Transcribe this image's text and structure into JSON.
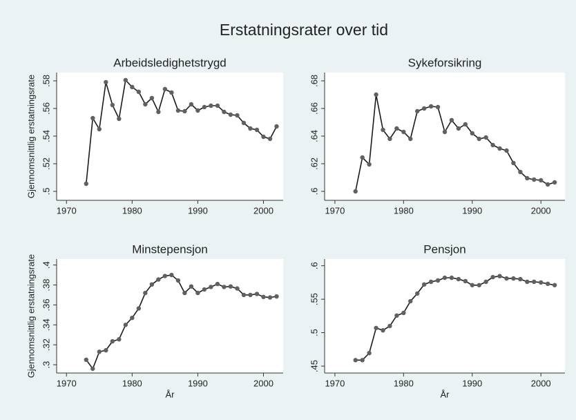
{
  "title": "Erstatningsrater over tid",
  "chart_data": [
    {
      "type": "line",
      "title": "Arbeidsledighetstrygd",
      "ylabel": "Gjennomsnittlig erstatningsrate",
      "color": "#1a1a1a",
      "x": [
        1973,
        1974,
        1975,
        1976,
        1977,
        1978,
        1979,
        1980,
        1981,
        1982,
        1983,
        1984,
        1985,
        1986,
        1987,
        1988,
        1989,
        1990,
        1991,
        1992,
        1993,
        1994,
        1995,
        1996,
        1997,
        1998,
        1999,
        2000,
        2001,
        2002
      ],
      "values": [
        0.5055,
        0.553,
        0.545,
        0.579,
        0.5625,
        0.5525,
        0.5805,
        0.5755,
        0.572,
        0.563,
        0.5675,
        0.5575,
        0.574,
        0.5715,
        0.5585,
        0.558,
        0.563,
        0.5585,
        0.561,
        0.562,
        0.562,
        0.5575,
        0.5555,
        0.555,
        0.5495,
        0.5455,
        0.5445,
        0.5395,
        0.538,
        0.547
      ],
      "xlim": [
        1968.5,
        2003
      ],
      "xticks": [
        1970,
        1980,
        1990,
        2000
      ],
      "ylim": [
        0.4935,
        0.586
      ],
      "yticks": [
        {
          "value": 0.5,
          "label": ".5"
        },
        {
          "value": 0.52,
          "label": ".52"
        },
        {
          "value": 0.54,
          "label": ".54"
        },
        {
          "value": 0.56,
          "label": ".56"
        },
        {
          "value": 0.58,
          "label": ".58"
        }
      ]
    },
    {
      "type": "line",
      "title": "Sykeforsikring",
      "color": "#1a1a1a",
      "x": [
        1973,
        1974,
        1975,
        1976,
        1977,
        1978,
        1979,
        1980,
        1981,
        1982,
        1983,
        1984,
        1985,
        1986,
        1987,
        1988,
        1989,
        1990,
        1991,
        1992,
        1993,
        1994,
        1995,
        1996,
        1997,
        1998,
        1999,
        2000,
        2001,
        2002
      ],
      "values": [
        0.6,
        0.6245,
        0.6195,
        0.67,
        0.6445,
        0.638,
        0.6455,
        0.643,
        0.638,
        0.658,
        0.66,
        0.6615,
        0.661,
        0.643,
        0.6515,
        0.6455,
        0.6485,
        0.642,
        0.638,
        0.639,
        0.6335,
        0.631,
        0.6295,
        0.6205,
        0.614,
        0.6095,
        0.6085,
        0.608,
        0.605,
        0.6065
      ],
      "xlim": [
        1968.5,
        2003.5
      ],
      "xticks": [
        1970,
        1980,
        1990,
        2000
      ],
      "ylim": [
        0.5935,
        0.686
      ],
      "yticks": [
        {
          "value": 0.6,
          "label": ".6"
        },
        {
          "value": 0.62,
          "label": ".62"
        },
        {
          "value": 0.64,
          "label": ".64"
        },
        {
          "value": 0.66,
          "label": ".66"
        },
        {
          "value": 0.68,
          "label": ".68"
        }
      ]
    },
    {
      "type": "line",
      "title": "Minstepensjon",
      "ylabel": "Gjennomsnittlig erstatningsrate",
      "xlabel": "År",
      "color": "#1a1a1a",
      "x": [
        1973,
        1974,
        1975,
        1976,
        1977,
        1978,
        1979,
        1980,
        1981,
        1982,
        1983,
        1984,
        1985,
        1986,
        1987,
        1988,
        1989,
        1990,
        1991,
        1992,
        1993,
        1994,
        1995,
        1996,
        1997,
        1998,
        1999,
        2000,
        2001,
        2002
      ],
      "values": [
        0.305,
        0.296,
        0.313,
        0.3145,
        0.3235,
        0.3255,
        0.34,
        0.347,
        0.3565,
        0.372,
        0.3805,
        0.3855,
        0.389,
        0.39,
        0.3845,
        0.372,
        0.3785,
        0.372,
        0.3755,
        0.378,
        0.381,
        0.378,
        0.3785,
        0.3765,
        0.37,
        0.37,
        0.371,
        0.368,
        0.3675,
        0.3685
      ],
      "xlim": [
        1968.5,
        2003
      ],
      "xticks": [
        1970,
        1980,
        1990,
        2000
      ],
      "ylim": [
        0.2917,
        0.406
      ],
      "yticks": [
        {
          "value": 0.3,
          "label": ".3"
        },
        {
          "value": 0.32,
          "label": ".32"
        },
        {
          "value": 0.34,
          "label": ".34"
        },
        {
          "value": 0.36,
          "label": ".36"
        },
        {
          "value": 0.38,
          "label": ".38"
        },
        {
          "value": 0.4,
          "label": ".4"
        }
      ]
    },
    {
      "type": "line",
      "title": "Pensjon",
      "xlabel": "År",
      "color": "#1a1a1a",
      "x": [
        1973,
        1974,
        1975,
        1976,
        1977,
        1978,
        1979,
        1980,
        1981,
        1982,
        1983,
        1984,
        1985,
        1986,
        1987,
        1988,
        1989,
        1990,
        1991,
        1992,
        1993,
        1994,
        1995,
        1996,
        1997,
        1998,
        1999,
        2000,
        2001,
        2002
      ],
      "values": [
        0.459,
        0.459,
        0.4695,
        0.507,
        0.5035,
        0.51,
        0.5255,
        0.5295,
        0.547,
        0.5585,
        0.572,
        0.576,
        0.578,
        0.582,
        0.582,
        0.58,
        0.577,
        0.571,
        0.571,
        0.576,
        0.583,
        0.5845,
        0.581,
        0.581,
        0.58,
        0.576,
        0.576,
        0.575,
        0.573,
        0.571
      ],
      "xlim": [
        1968.5,
        2003.5
      ],
      "xticks": [
        1970,
        1980,
        1990,
        2000
      ],
      "ylim": [
        0.4397,
        0.61
      ],
      "yticks": [
        {
          "value": 0.45,
          "label": ".45"
        },
        {
          "value": 0.5,
          "label": ".5"
        },
        {
          "value": 0.55,
          "label": ".55"
        },
        {
          "value": 0.6,
          "label": ".6"
        }
      ]
    }
  ]
}
